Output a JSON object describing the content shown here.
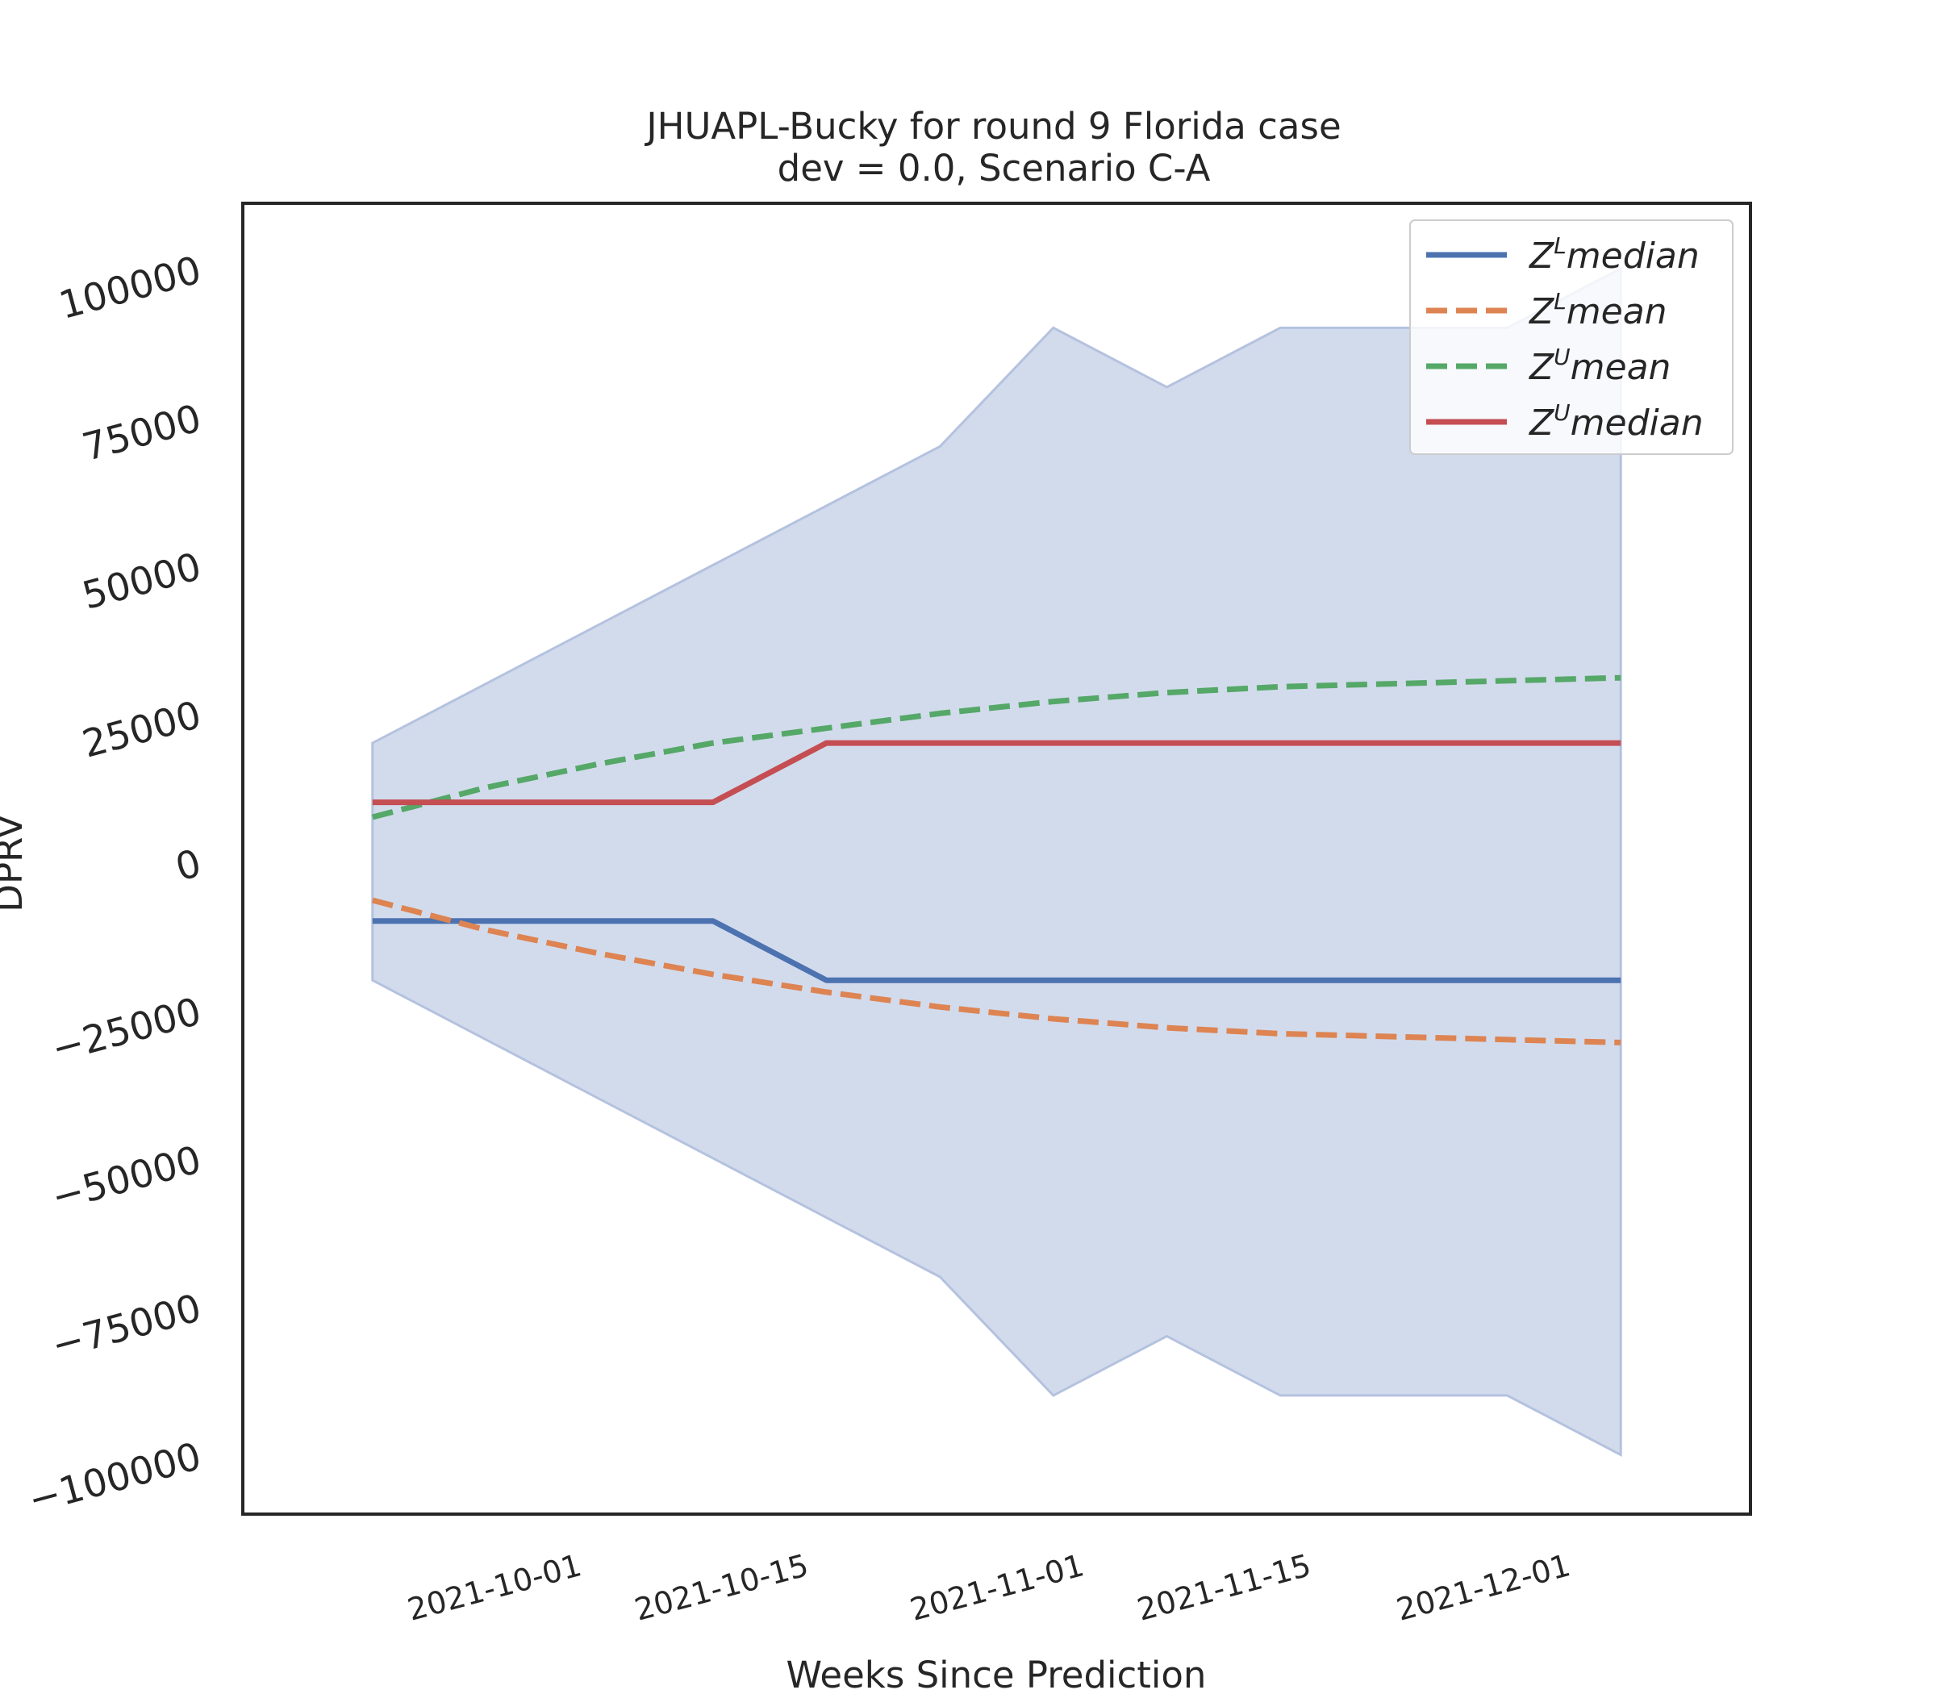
{
  "chart_data": {
    "type": "line",
    "title": "JHUAPL-Bucky for round 9 Florida case",
    "subtitle": "dev = 0.0, Scenario C-A",
    "xlabel": "Weeks Since Prediction",
    "ylabel": "DPRV",
    "x": [
      "2021-09-18",
      "2021-09-25",
      "2021-10-02",
      "2021-10-09",
      "2021-10-16",
      "2021-10-23",
      "2021-10-30",
      "2021-11-06",
      "2021-11-13",
      "2021-11-20",
      "2021-11-27",
      "2021-12-04"
    ],
    "xlim": [
      "2021-09-10",
      "2021-12-12"
    ],
    "x_ticks": [
      "2021-10-01",
      "2021-10-15",
      "2021-11-01",
      "2021-11-15",
      "2021-12-01"
    ],
    "ylim": [
      -110000,
      111000
    ],
    "y_ticks": [
      100000,
      75000,
      50000,
      25000,
      0,
      -25000,
      -50000,
      -75000,
      -100000
    ],
    "y_tick_labels": [
      "100000",
      "75000",
      "50000",
      "25000",
      "0",
      "−25000",
      "−50000",
      "−75000",
      "−100000"
    ],
    "band": {
      "color": "#d2dbec",
      "upper": [
        20000,
        30000,
        40000,
        50000,
        60000,
        70000,
        90000,
        80000,
        90000,
        90000,
        90000,
        100000
      ],
      "lower": [
        -20000,
        -30000,
        -40000,
        -50000,
        -60000,
        -70000,
        -90000,
        -80000,
        -90000,
        -90000,
        -90000,
        -100000
      ]
    },
    "series": [
      {
        "name": "median",
        "sup": "L",
        "style": "solid",
        "color": "#4c72b0",
        "values": [
          -10000,
          -10000,
          -10000,
          -10000,
          -20000,
          -20000,
          -20000,
          -20000,
          -20000,
          -20000,
          -20000,
          -20000
        ]
      },
      {
        "name": "mean",
        "sup": "L",
        "style": "dashed",
        "color": "#dd8452",
        "values": [
          -6500,
          -11500,
          -15500,
          -19000,
          -22000,
          -24500,
          -26500,
          -28000,
          -29000,
          -29500,
          -30000,
          -30500
        ]
      },
      {
        "name": "mean",
        "sup": "U",
        "style": "dashed",
        "color": "#55a868",
        "values": [
          7500,
          12500,
          16500,
          20000,
          22500,
          25000,
          27000,
          28500,
          29500,
          30000,
          30500,
          31000
        ]
      },
      {
        "name": "median",
        "sup": "U",
        "style": "solid",
        "color": "#c44e52",
        "values": [
          10000,
          10000,
          10000,
          10000,
          20000,
          20000,
          20000,
          20000,
          20000,
          20000,
          20000,
          20000
        ]
      }
    ],
    "legend_position": "top-right",
    "grid": false
  }
}
